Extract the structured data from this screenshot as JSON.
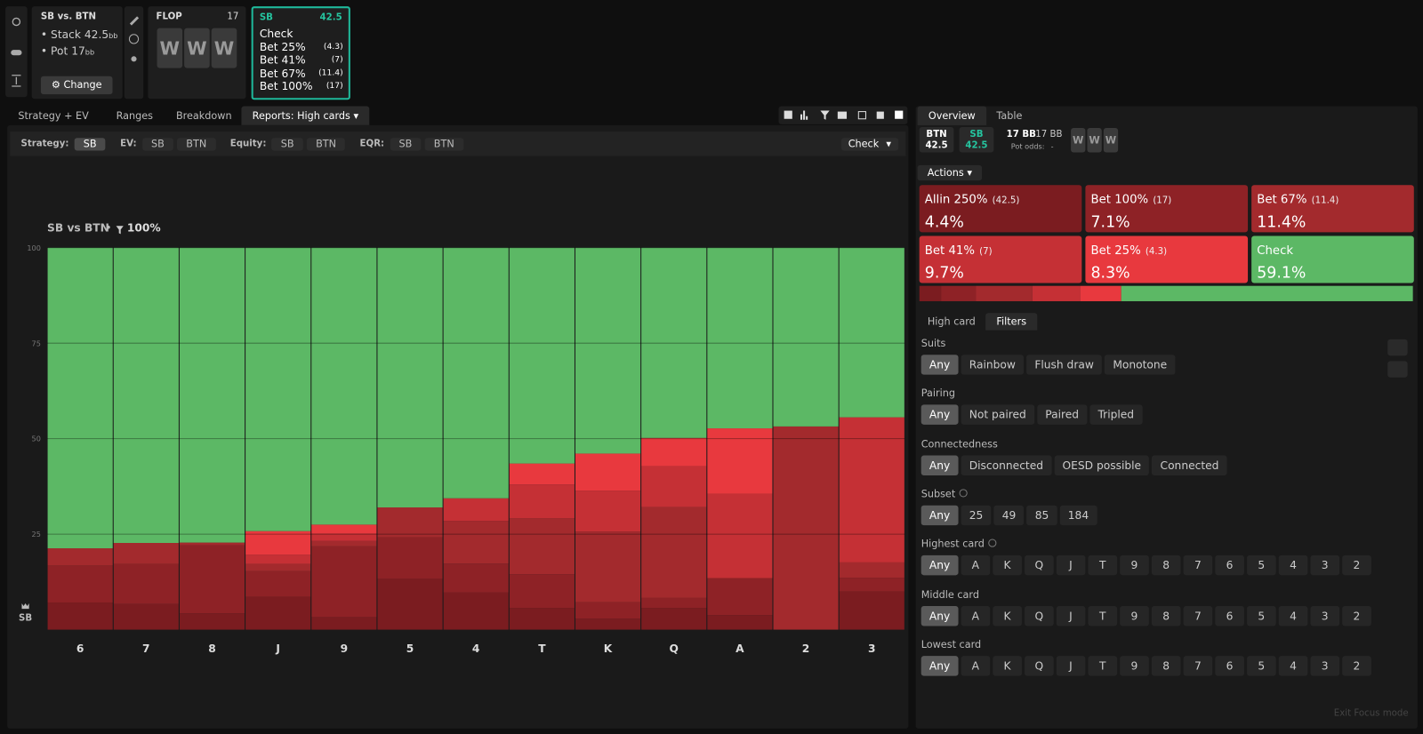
{
  "spot": {
    "title": "SB vs. BTN",
    "stack_label": "Stack",
    "stack": "42.5",
    "stack_unit": "bb",
    "pot_label": "Pot",
    "pot": "17",
    "pot_unit": "bb",
    "change_button": "Change"
  },
  "flop": {
    "title": "FLOP",
    "pot": "17",
    "cards": [
      "W",
      "W",
      "W"
    ]
  },
  "strategy_card": {
    "player": "SB",
    "stack": "42.5",
    "actions": [
      {
        "name": "Check"
      },
      {
        "name": "Bet 25%",
        "size": "(4.3)"
      },
      {
        "name": "Bet 41%",
        "size": "(7)"
      },
      {
        "name": "Bet 67%",
        "size": "(11.4)"
      },
      {
        "name": "Bet 100%",
        "size": "(17)"
      }
    ]
  },
  "tabs": [
    "Strategy + EV",
    "Ranges",
    "Breakdown",
    "Reports: High cards"
  ],
  "active_tab": 3,
  "filter_bar": {
    "strategy_label": "Strategy:",
    "strategy_options": [
      "SB"
    ],
    "ev_label": "EV:",
    "ev_options": [
      "SB",
      "BTN"
    ],
    "equity_label": "Equity:",
    "equity_options": [
      "SB",
      "BTN"
    ],
    "eqr_label": "EQR:",
    "eqr_options": [
      "SB",
      "BTN"
    ],
    "dropdown": "Check"
  },
  "chart_data": {
    "type": "bar",
    "stacked": true,
    "title": "SB vs BTN",
    "filter": "100%",
    "y_axis_label": "SB",
    "categories": [
      "6",
      "7",
      "8",
      "J",
      "9",
      "5",
      "4",
      "T",
      "K",
      "Q",
      "A",
      "2",
      "3"
    ],
    "series": [
      {
        "name": "Allin 250%",
        "color": "#7b1c20",
        "values": [
          7.1,
          6.7,
          4.3,
          8.6,
          3.3,
          13.3,
          9.7,
          5.7,
          2.9,
          5.7,
          3.8,
          0,
          10.0
        ]
      },
      {
        "name": "Bet 100%",
        "color": "#8e2226",
        "values": [
          9.7,
          10.5,
          17.8,
          6.7,
          18.5,
          10.9,
          7.6,
          8.8,
          4.3,
          2.6,
          9.7,
          0,
          3.6
        ]
      },
      {
        "name": "Bet 67%",
        "color": "#a32a2d",
        "values": [
          4.5,
          5.5,
          0.7,
          1.9,
          1.4,
          7.8,
          11.2,
          14.7,
          18.5,
          23.8,
          0,
          53.2,
          4.0
        ]
      },
      {
        "name": "Bet 41%",
        "color": "#c53035",
        "values": [
          0,
          0,
          0,
          2.4,
          1.9,
          0,
          5.9,
          8.8,
          10.7,
          10.7,
          22.1,
          0,
          38.0
        ]
      },
      {
        "name": "Bet 25%",
        "color": "#e8393e",
        "values": [
          0,
          0,
          0,
          6.2,
          2.4,
          0,
          0,
          5.5,
          9.7,
          7.4,
          17.1,
          0,
          0
        ]
      },
      {
        "name": "Check",
        "color": "#5cb865",
        "values": [
          78.7,
          77.3,
          77.2,
          74.2,
          72.5,
          68.0,
          65.6,
          56.5,
          53.9,
          49.8,
          47.3,
          46.8,
          44.4
        ]
      }
    ],
    "ylim": [
      0,
      100
    ],
    "yticks": [
      25,
      50,
      75,
      100
    ],
    "grid": true
  },
  "right_tabs": [
    "Overview",
    "Table"
  ],
  "summary": {
    "players": [
      {
        "name": "BTN",
        "stack": "42.5"
      },
      {
        "name": "SB",
        "stack": "42.5"
      }
    ],
    "pot": "17 BB",
    "pot_total": "17 BB",
    "pot_odds_label": "Pot odds:",
    "pot_odds": "-",
    "board": [
      "W",
      "W",
      "W"
    ]
  },
  "actions_menu": "Actions",
  "action_summary": {
    "names": [
      "Allin 250%",
      "Bet 100%",
      "Bet 67%",
      "Bet 41%",
      "Bet 25%",
      "Check"
    ],
    "sizes": [
      "(42.5)",
      "(17)",
      "(11.4)",
      "(7)",
      "(4.3)",
      null
    ],
    "values": [
      4.4,
      7.1,
      11.4,
      9.7,
      8.3,
      59.1
    ],
    "value_labels": [
      "4.4%",
      "7.1%",
      "11.4%",
      "9.7%",
      "8.3%",
      "59.1%"
    ],
    "colors": [
      "#7b1c20",
      "#8e2226",
      "#a32a2d",
      "#c53035",
      "#e8393e",
      "#5cb865"
    ]
  },
  "sub_tabs": [
    "High card",
    "Filters"
  ],
  "filters": [
    {
      "label": "Suits",
      "options": [
        "Any",
        "Rainbow",
        "Flush draw",
        "Monotone"
      ]
    },
    {
      "label": "Pairing",
      "options": [
        "Any",
        "Not paired",
        "Paired",
        "Tripled"
      ]
    },
    {
      "label": "Connectedness",
      "options": [
        "Any",
        "Disconnected",
        "OESD possible",
        "Connected"
      ]
    },
    {
      "label": "Subset",
      "help": true,
      "options": [
        "Any",
        "25",
        "49",
        "85",
        "184"
      ]
    },
    {
      "label": "Highest card",
      "help": true,
      "options": [
        "Any",
        "A",
        "K",
        "Q",
        "J",
        "T",
        "9",
        "8",
        "7",
        "6",
        "5",
        "4",
        "3",
        "2"
      ]
    },
    {
      "label": "Middle card",
      "options": [
        "Any",
        "A",
        "K",
        "Q",
        "J",
        "T",
        "9",
        "8",
        "7",
        "6",
        "5",
        "4",
        "3",
        "2"
      ]
    },
    {
      "label": "Lowest card",
      "options": [
        "Any",
        "A",
        "K",
        "Q",
        "J",
        "T",
        "9",
        "8",
        "7",
        "6",
        "5",
        "4",
        "3",
        "2"
      ]
    }
  ],
  "footer": "Exit Focus mode"
}
